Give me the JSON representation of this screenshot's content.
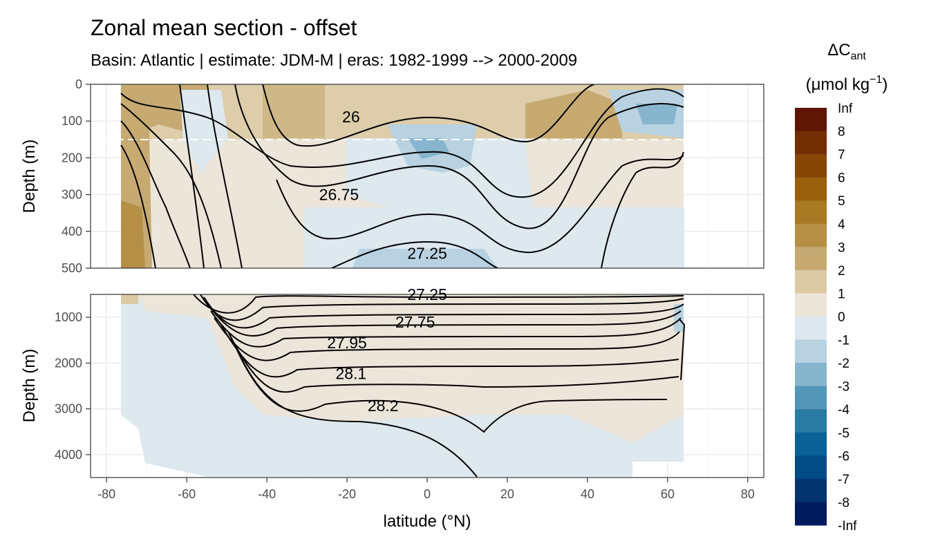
{
  "chart_data": {
    "type": "heatmap",
    "title": "Zonal mean section - offset",
    "subtitle": "Basin: Atlantic | estimate: JDM-M | eras: 1982-1999 --> 2000-2009",
    "xlabel": "latitude (°N)",
    "ylabel": "Depth (m)",
    "x_ticks": [
      "-80",
      "-60",
      "-40",
      "-20",
      "0",
      "20",
      "40",
      "60",
      "80"
    ],
    "xlim": [
      -84,
      84
    ],
    "data_lat_range": [
      -77.5,
      64.5
    ],
    "grid": true,
    "panels": [
      {
        "name": "upper",
        "ylim": [
          0,
          500
        ],
        "y_ticks": [
          "0",
          "100",
          "200",
          "300",
          "400",
          "500"
        ],
        "dashed_depth_line": 150,
        "contour_labels": [
          {
            "text": "26",
            "lat": -19,
            "depth": 88
          },
          {
            "text": "26.75",
            "lat": -22,
            "depth": 300
          },
          {
            "text": "27.25",
            "lat": 0,
            "depth": 460
          }
        ]
      },
      {
        "name": "lower",
        "ylim": [
          500,
          4500
        ],
        "y_ticks": [
          "1000",
          "2000",
          "3000",
          "4000"
        ],
        "contour_labels": [
          {
            "text": "27.25",
            "lat": 0,
            "depth": 500
          },
          {
            "text": "27.75",
            "lat": -3,
            "depth": 1100
          },
          {
            "text": "27.95",
            "lat": -20,
            "depth": 1560
          },
          {
            "text": "28.1",
            "lat": -19,
            "depth": 2230
          },
          {
            "text": "28.2",
            "lat": -11,
            "depth": 2930
          }
        ]
      }
    ],
    "legend": {
      "title_main": "ΔC",
      "title_sub": "ant",
      "unit": "(μmol kg",
      "unit_sup": "−1",
      "unit_end": ")",
      "placement": "right",
      "breaks": [
        "Inf",
        "8",
        "7",
        "6",
        "5",
        "4",
        "3",
        "2",
        "1",
        "0",
        "-1",
        "-2",
        "-3",
        "-4",
        "-5",
        "-6",
        "-7",
        "-8",
        "-Inf"
      ],
      "colors": [
        "#5f1503",
        "#742e04",
        "#874606",
        "#995f0b",
        "#a87a23",
        "#b58f45",
        "#c6aa72",
        "#dccaa4",
        "#ece5d9",
        "#dde8ef",
        "#b8d2e2",
        "#86b5cd",
        "#5496b6",
        "#2a7ba2",
        "#0a6195",
        "#014b87",
        "#04346f",
        "#011c5c"
      ]
    }
  }
}
